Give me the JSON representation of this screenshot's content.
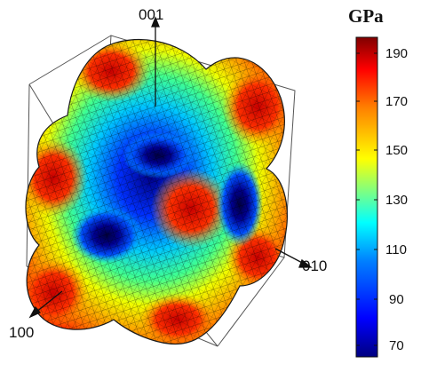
{
  "figure": {
    "axes": {
      "top": "001",
      "right": "010",
      "left_bottom": "100"
    }
  },
  "colorbar": {
    "unit": "GPa",
    "ticks": [
      "190",
      "170",
      "150",
      "130",
      "110",
      "90",
      "70"
    ],
    "min": 70,
    "max": 190,
    "colors": [
      "#000080",
      "#0000ff",
      "#0080ff",
      "#00ffff",
      "#80ff80",
      "#ffff00",
      "#ff8000",
      "#ff0000",
      "#800000"
    ]
  }
}
